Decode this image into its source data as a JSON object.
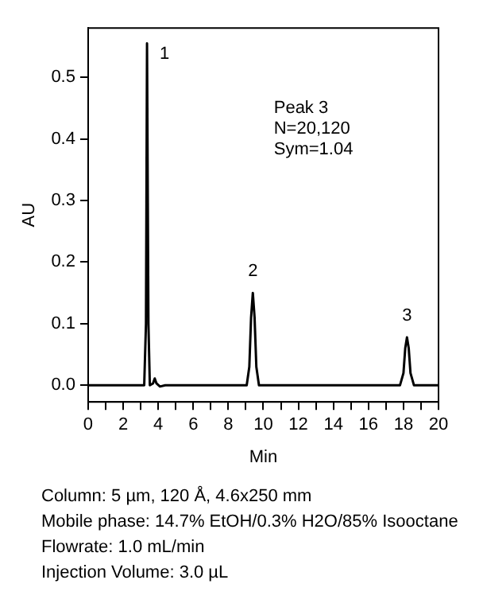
{
  "chart_data": {
    "type": "line",
    "xlabel": "Min",
    "ylabel": "AU",
    "x": [
      0,
      3.2,
      3.3,
      3.36,
      3.44,
      3.52,
      3.7,
      3.8,
      3.9,
      4.1,
      4.4,
      9.05,
      9.2,
      9.3,
      9.4,
      9.5,
      9.6,
      9.75,
      17.8,
      18.0,
      18.1,
      18.2,
      18.3,
      18.4,
      18.6,
      20
    ],
    "series": [
      {
        "color": "#000000",
        "values": [
          0,
          0,
          0.1,
          0.555,
          0.1,
          0,
          0.003,
          0.011,
          0.003,
          -0.002,
          0,
          0,
          0.03,
          0.11,
          0.15,
          0.11,
          0.03,
          0,
          0,
          0.02,
          0.06,
          0.078,
          0.06,
          0.02,
          0,
          0
        ]
      }
    ],
    "xlim": [
      0,
      20
    ],
    "xticks": [
      0,
      {
        "value": 1,
        "label": null
      },
      2,
      {
        "value": 3,
        "label": null
      },
      4,
      {
        "value": 5,
        "label": null
      },
      6,
      {
        "value": 7,
        "label": null
      },
      8,
      {
        "value": 9,
        "label": null
      },
      10,
      {
        "value": 11,
        "label": null
      },
      12,
      {
        "value": 13,
        "label": null
      },
      14,
      {
        "value": 15,
        "label": null
      },
      16,
      {
        "value": 17,
        "label": null
      },
      18,
      {
        "value": 19,
        "label": null
      },
      20
    ],
    "ylim": [
      -0.027,
      0.58
    ],
    "yticks": [
      {
        "value": 0,
        "label": "0.0"
      },
      0.1,
      0.2,
      0.3,
      0.4,
      0.5
    ],
    "grid": false,
    "legend": false,
    "marker": "none",
    "line_style": "solid",
    "annotations": [
      {
        "text": "1",
        "x": 3.36,
        "y": 0.555
      },
      {
        "text": "2",
        "x": 9.4,
        "y": 0.15
      },
      {
        "text": "3",
        "x": 18.2,
        "y": 0.078
      },
      "Peak 3\nN=20,120\nSym=1.04",
      "Column: 5 µm, 120 Å, 4.6x250 mm",
      "Mobile phase: 14.7% EtOH/0.3% H2O/85% Isooctane",
      "Flowrate: 1.0 mL/min",
      "Injection Volume: 3.0 µL"
    ]
  }
}
